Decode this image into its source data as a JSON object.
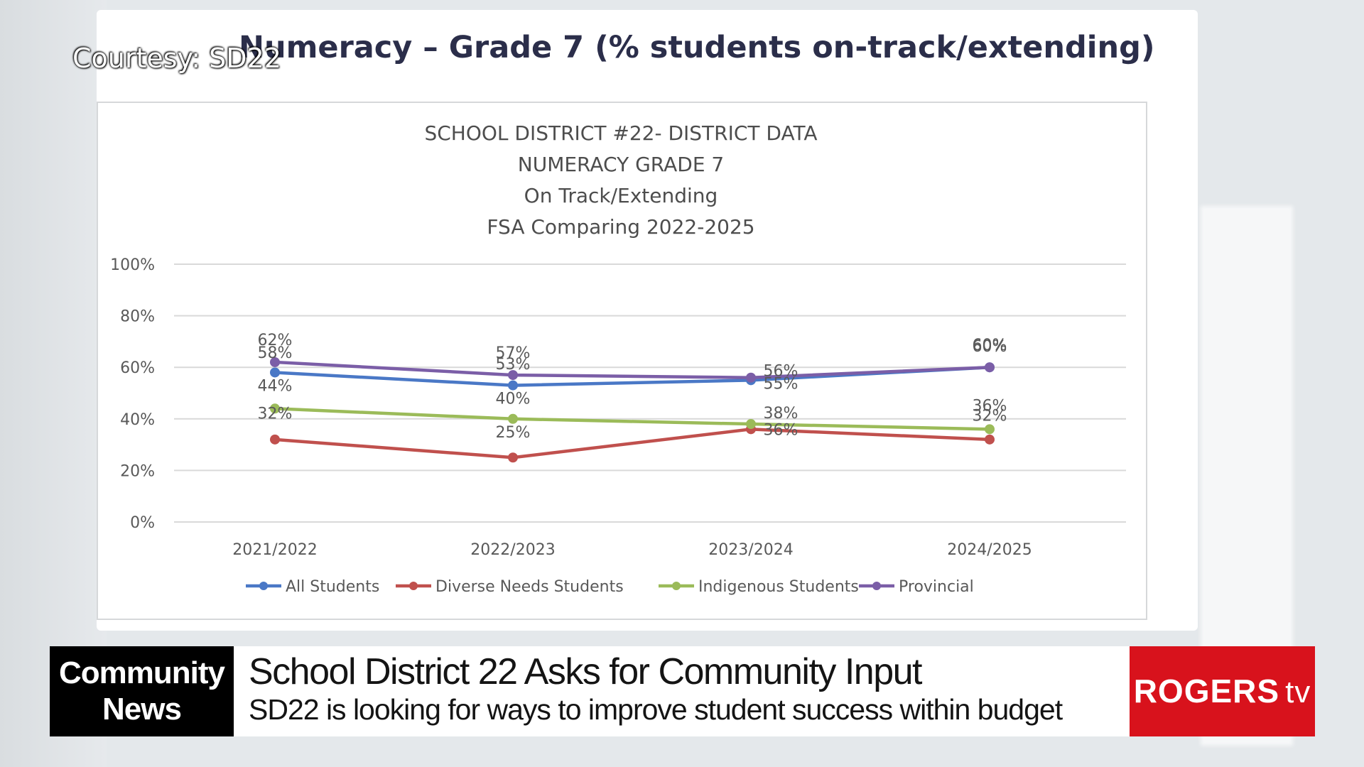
{
  "courtesy": "Courtesy: SD22",
  "slide_title": "Numeracy – Grade 7 (% students on-track/extending)",
  "chart_data": {
    "type": "line",
    "title_lines": [
      "SCHOOL DISTRICT #22- DISTRICT DATA",
      "NUMERACY GRADE 7",
      "On Track/Extending",
      "FSA Comparing 2022-2025"
    ],
    "categories": [
      "2021/2022",
      "2022/2023",
      "2023/2024",
      "2024/2025"
    ],
    "ylim": [
      0,
      100
    ],
    "yticks": [
      0,
      20,
      40,
      60,
      80,
      100
    ],
    "ytick_labels": [
      "0%",
      "20%",
      "40%",
      "60%",
      "80%",
      "100%"
    ],
    "grid": true,
    "legend_position": "bottom",
    "series": [
      {
        "name": "All Students",
        "color": "#4a78c6",
        "values": [
          58,
          53,
          55,
          60
        ]
      },
      {
        "name": "Diverse Needs Students",
        "color": "#c0504d",
        "values": [
          32,
          25,
          36,
          32
        ]
      },
      {
        "name": "Indigenous Students",
        "color": "#9bbb59",
        "values": [
          44,
          40,
          38,
          36
        ]
      },
      {
        "name": "Provincial",
        "color": "#7b5ea7",
        "values": [
          62,
          57,
          56,
          60
        ]
      }
    ]
  },
  "lower_third": {
    "tag_line1": "Community",
    "tag_line2": "News",
    "headline": "School District 22 Asks for Community Input",
    "subline": "SD22 is looking for ways to improve student success within budget",
    "brand": "ROGERS",
    "brand_suffix": "tv"
  }
}
